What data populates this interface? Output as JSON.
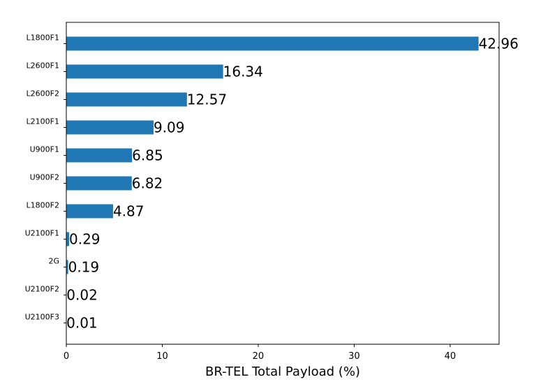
{
  "chart_data": {
    "type": "bar",
    "orientation": "horizontal",
    "categories": [
      "L1800F1",
      "L2600F1",
      "L2600F2",
      "L2100F1",
      "U900F1",
      "U900F2",
      "L1800F2",
      "U2100F1",
      "2G",
      "U2100F2",
      "U2100F3"
    ],
    "values": [
      42.96,
      16.34,
      12.57,
      9.09,
      6.85,
      6.82,
      4.87,
      0.29,
      0.19,
      0.02,
      0.01
    ],
    "value_labels": [
      "42.96",
      "16.34",
      "12.57",
      "9.09",
      "6.85",
      "6.82",
      "4.87",
      "0.29",
      "0.19",
      "0.02",
      "0.01"
    ],
    "title": "",
    "xlabel": "BR-TEL Total Payload (%)",
    "ylabel": "",
    "xlim": [
      0,
      45.1
    ],
    "xticks": [
      0,
      10,
      20,
      30,
      40
    ],
    "xtick_labels": [
      "0",
      "10",
      "20",
      "30",
      "40"
    ],
    "grid": false,
    "bar_color": "#1f77b4"
  }
}
